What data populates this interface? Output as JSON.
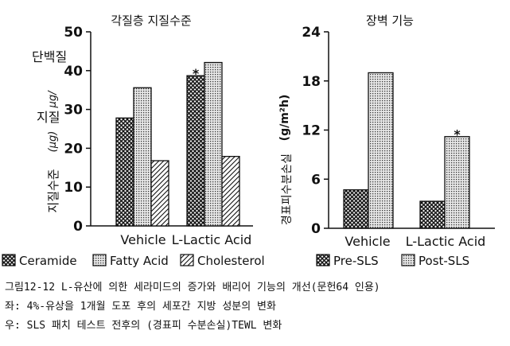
{
  "chart_data": [
    {
      "type": "bar",
      "title": "각질층 지질수준",
      "ylabel_lines": [
        "단백질",
        "μg/",
        "지질",
        "(μg)",
        "지질수준"
      ],
      "yticks": [
        0,
        10,
        20,
        30,
        40,
        50
      ],
      "ylim": [
        0,
        50
      ],
      "categories": [
        "Vehicle",
        "L-Lactic Acid"
      ],
      "series": [
        {
          "name": "Ceramide",
          "pattern": "crosshatch",
          "values": [
            27.8,
            38.7
          ]
        },
        {
          "name": "Fatty Acid",
          "pattern": "dots",
          "values": [
            35.6,
            42.1
          ]
        },
        {
          "name": "Cholesterol",
          "pattern": "diagonal",
          "values": [
            16.8,
            17.9
          ]
        }
      ],
      "annotations": [
        {
          "text": "*",
          "category": 1,
          "series": 0
        }
      ],
      "legend": [
        "Ceramide",
        "Fatty Acid",
        "Cholesterol"
      ]
    },
    {
      "type": "bar",
      "title": "장벽 기능",
      "ylabel_unit": "(g/m²h)",
      "ylabel_text": "경표피수분손실",
      "yticks": [
        0,
        6,
        12,
        18,
        24
      ],
      "ylim": [
        0,
        24
      ],
      "categories": [
        "Vehicle",
        "L-Lactic Acid"
      ],
      "series": [
        {
          "name": "Pre-SLS",
          "pattern": "crosshatch",
          "values": [
            4.7,
            3.3
          ]
        },
        {
          "name": "Post-SLS",
          "pattern": "dots",
          "values": [
            19.0,
            11.2
          ]
        }
      ],
      "annotations": [
        {
          "text": "*",
          "category": 1,
          "series": 1
        }
      ],
      "legend": [
        "Pre-SLS",
        "Post-SLS"
      ]
    }
  ],
  "captions": {
    "line1": "그림12-12 L-유산에 의한 세라미드의 증가와 배리어 기능의 개선(문헌64 인용)",
    "line2": "좌: 4%-유상을 1개월 도포 후의 세포간 지방 성분의 변화",
    "line3": "우: SLS 패치 테스트 전후의 (경표피 수분손실)TEWL 변화"
  }
}
